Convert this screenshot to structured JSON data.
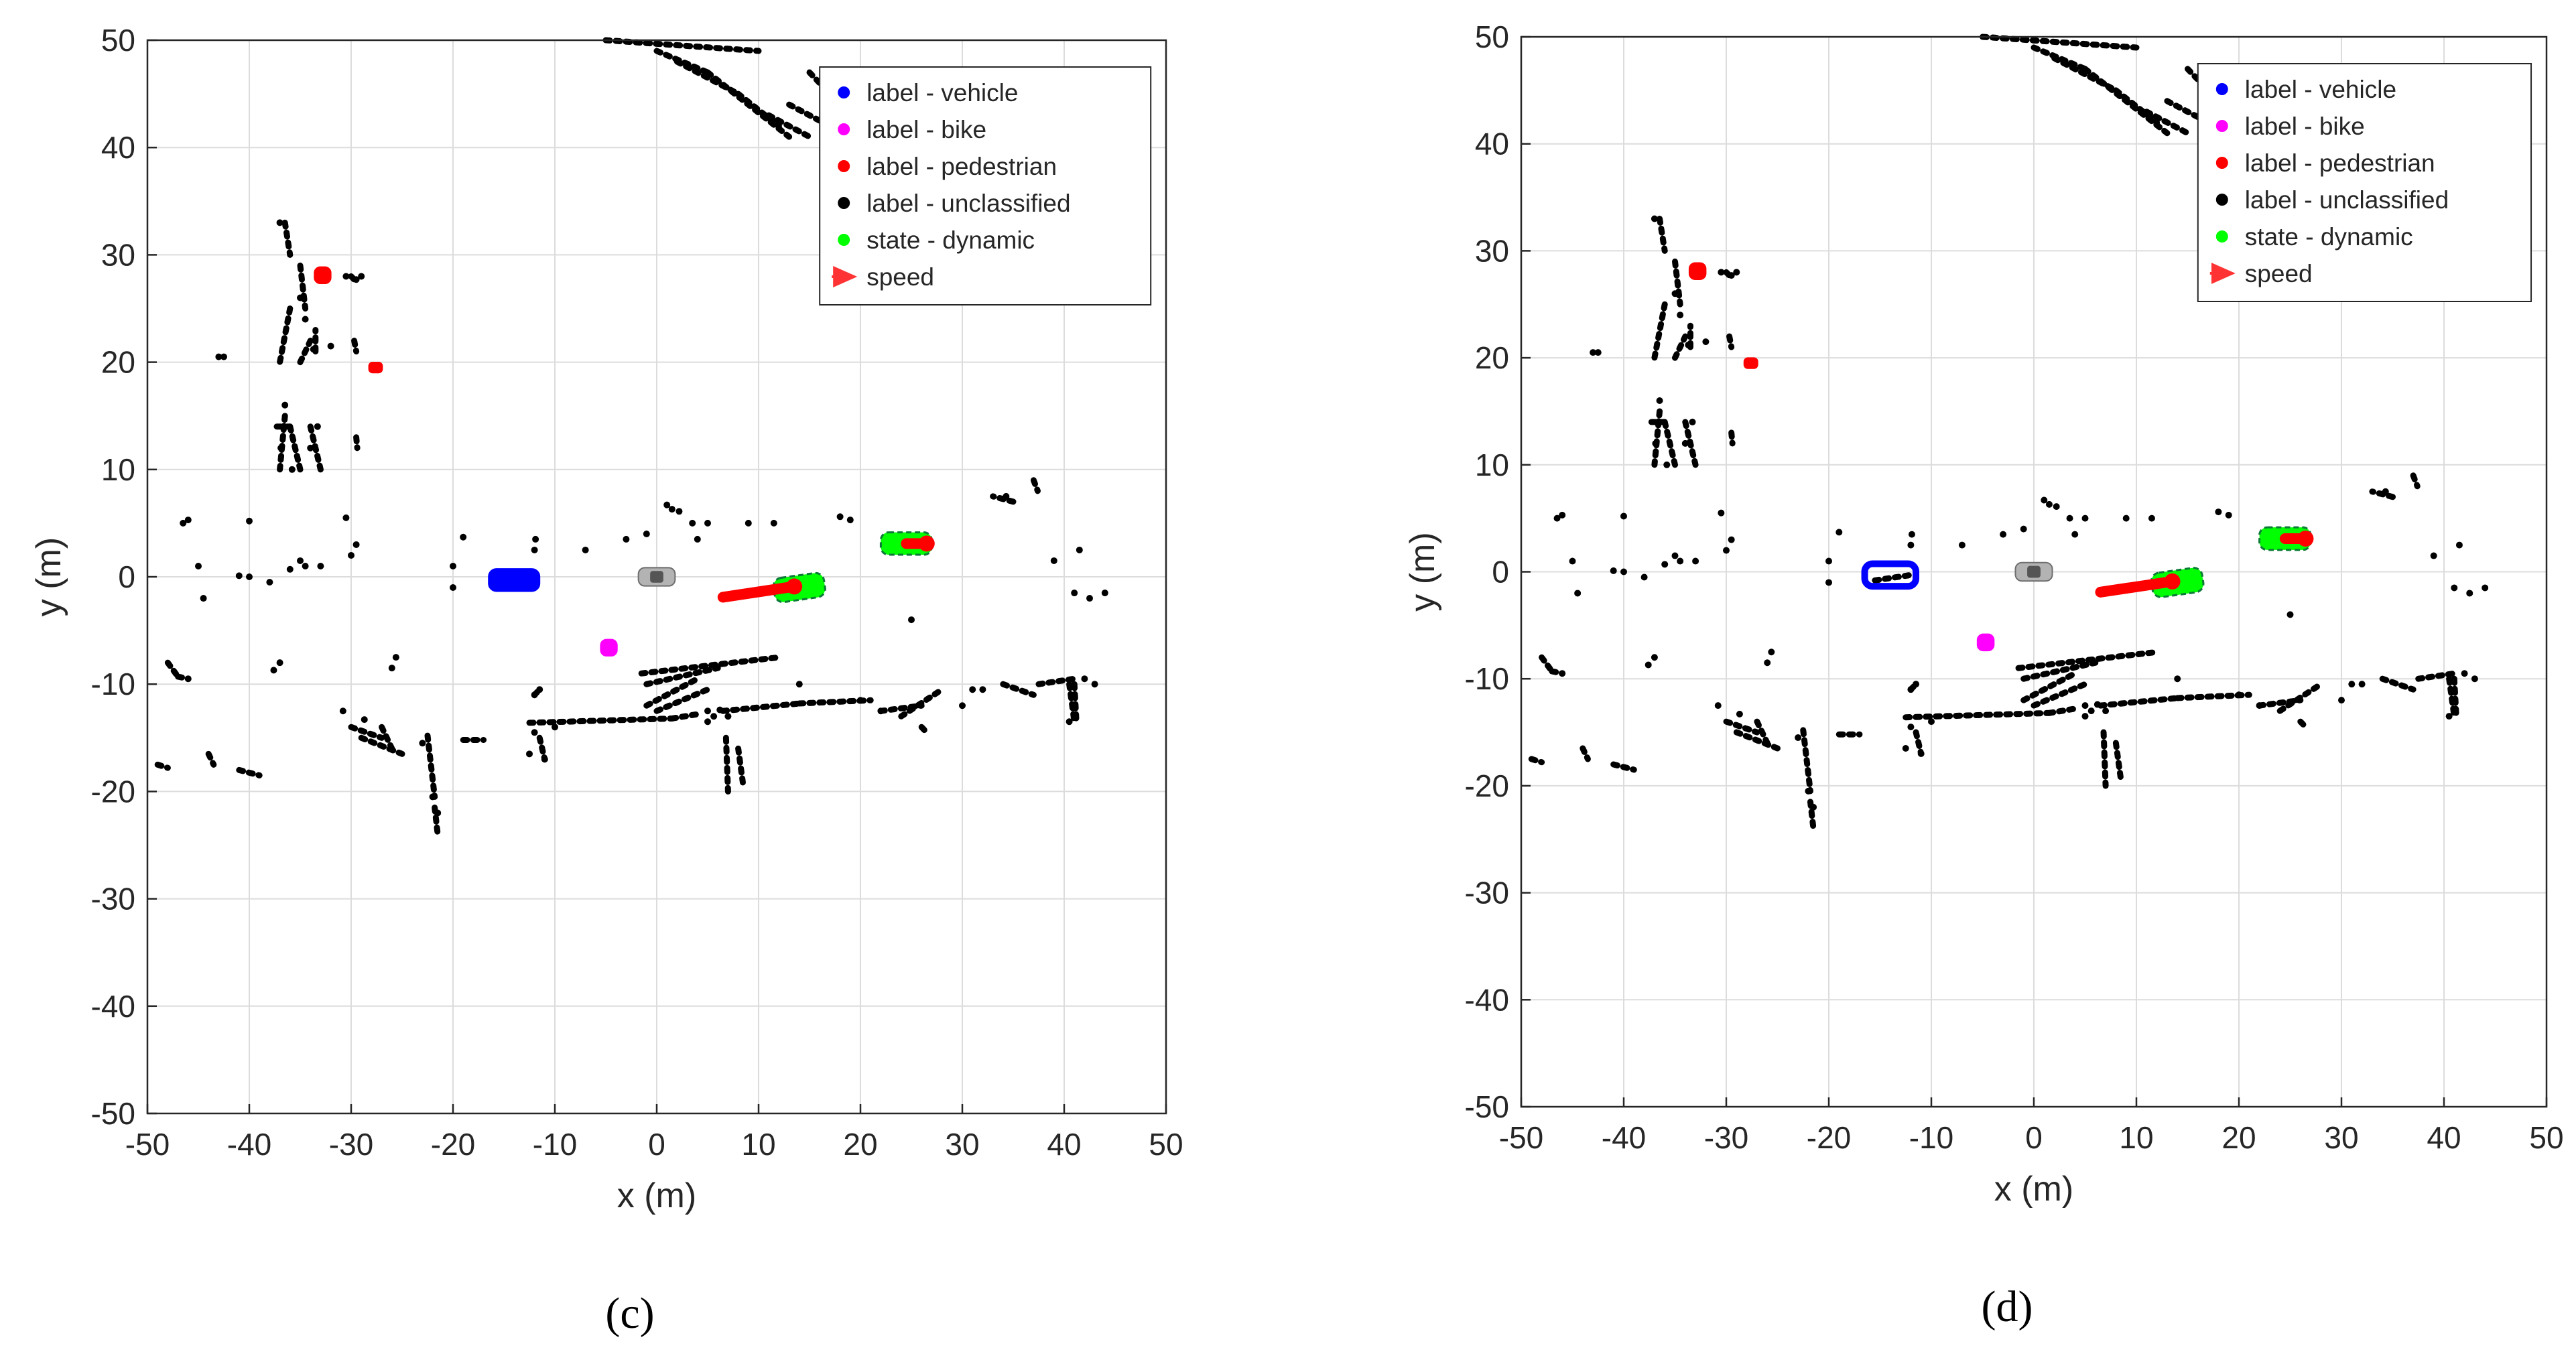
{
  "chart_data": [
    {
      "type": "scatter",
      "panel_label": "(c)",
      "xlabel": "x (m)",
      "ylabel": "y (m)",
      "xlim": [
        -50,
        50
      ],
      "ylim": [
        -50,
        50
      ],
      "xticks": [
        "-50",
        "-40",
        "-30",
        "-20",
        "-10",
        "0",
        "10",
        "20",
        "30",
        "40",
        "50"
      ],
      "yticks": [
        "-50",
        "-40",
        "-30",
        "-20",
        "-10",
        "0",
        "10",
        "20",
        "30",
        "40",
        "50"
      ],
      "grid": true,
      "legend_position": "top-right",
      "legend": [
        {
          "label": "label - vehicle",
          "color": "#0000ff",
          "marker": "dot"
        },
        {
          "label": "label - bike",
          "color": "#ff00ff",
          "marker": "dot"
        },
        {
          "label": "label - pedestrian",
          "color": "#ff0000",
          "marker": "dot"
        },
        {
          "label": "label - unclassified",
          "color": "#000000",
          "marker": "dot"
        },
        {
          "label": "state - dynamic",
          "color": "#00ff00",
          "marker": "dot"
        },
        {
          "label": "speed",
          "color": "#ff3333",
          "marker": "arrow"
        }
      ],
      "objects": [
        {
          "class": "vehicle",
          "center": [
            -14,
            -0.3
          ],
          "size": [
            5,
            2.2
          ],
          "color": "#0000ff"
        },
        {
          "class": "bike",
          "center": [
            -4.7,
            -6.6
          ],
          "size": [
            1.6,
            1.6
          ],
          "color": "#ff00ff"
        },
        {
          "class": "pedestrian",
          "center": [
            -32.8,
            28.1
          ],
          "size": [
            1.6,
            1.6
          ],
          "color": "#ff0000"
        },
        {
          "class": "pedestrian",
          "center": [
            -27.6,
            19.5
          ],
          "size": [
            1.3,
            1.0
          ],
          "color": "#ff0000"
        },
        {
          "class": "dynamic",
          "center": [
            14,
            -1
          ],
          "size": [
            5,
            2.4
          ],
          "angle": 8,
          "color": "#00ff00"
        },
        {
          "class": "dynamic",
          "center": [
            24.5,
            3.1
          ],
          "size": [
            5,
            2.2
          ],
          "color": "#00ff00"
        },
        {
          "class": "ego",
          "center": [
            0,
            0
          ],
          "size": [
            3.6,
            1.8
          ],
          "color": "#aaaaaa"
        }
      ],
      "speed_tracks": [
        {
          "from": [
            6.5,
            -1.9
          ],
          "to": [
            13.5,
            -0.9
          ],
          "color": "#ff0000"
        },
        {
          "from": [
            24.5,
            3.1
          ],
          "to": [
            26.5,
            3.1
          ],
          "color": "#ff0000"
        }
      ]
    },
    {
      "type": "scatter",
      "panel_label": "(d)",
      "xlabel": "x (m)",
      "ylabel": "y (m)",
      "xlim": [
        -50,
        50
      ],
      "ylim": [
        -50,
        50
      ],
      "xticks": [
        "-50",
        "-40",
        "-30",
        "-20",
        "-10",
        "0",
        "10",
        "20",
        "30",
        "40",
        "50"
      ],
      "yticks": [
        "-50",
        "-40",
        "-30",
        "-20",
        "-10",
        "0",
        "10",
        "20",
        "30",
        "40",
        "50"
      ],
      "grid": true,
      "legend_position": "top-right",
      "legend": [
        {
          "label": "label - vehicle",
          "color": "#0000ff",
          "marker": "dot"
        },
        {
          "label": "label - bike",
          "color": "#ff00ff",
          "marker": "dot"
        },
        {
          "label": "label - pedestrian",
          "color": "#ff0000",
          "marker": "dot"
        },
        {
          "label": "label - unclassified",
          "color": "#000000",
          "marker": "dot"
        },
        {
          "label": "state - dynamic",
          "color": "#00ff00",
          "marker": "dot"
        },
        {
          "label": "speed",
          "color": "#ff3333",
          "marker": "arrow"
        }
      ],
      "objects": [
        {
          "class": "vehicle",
          "center": [
            -14,
            -0.3
          ],
          "size": [
            5,
            2.2
          ],
          "color": "#0000ff",
          "hollow": true
        },
        {
          "class": "bike",
          "center": [
            -4.7,
            -6.6
          ],
          "size": [
            1.6,
            1.6
          ],
          "color": "#ff00ff"
        },
        {
          "class": "pedestrian",
          "center": [
            -32.8,
            28.1
          ],
          "size": [
            1.6,
            1.6
          ],
          "color": "#ff0000"
        },
        {
          "class": "pedestrian",
          "center": [
            -27.6,
            19.5
          ],
          "size": [
            1.3,
            1.0
          ],
          "color": "#ff0000"
        },
        {
          "class": "dynamic",
          "center": [
            14,
            -1
          ],
          "size": [
            5,
            2.4
          ],
          "angle": 8,
          "color": "#00ff00"
        },
        {
          "class": "dynamic",
          "center": [
            24.5,
            3.1
          ],
          "size": [
            5,
            2.2
          ],
          "color": "#00ff00"
        },
        {
          "class": "ego",
          "center": [
            0,
            0
          ],
          "size": [
            3.6,
            1.8
          ],
          "color": "#aaaaaa"
        }
      ],
      "speed_tracks": [
        {
          "from": [
            6.5,
            -1.9
          ],
          "to": [
            13.5,
            -0.9
          ],
          "color": "#ff0000"
        },
        {
          "from": [
            24.5,
            3.1
          ],
          "to": [
            26.5,
            3.1
          ],
          "color": "#ff0000"
        }
      ]
    }
  ],
  "point_cloud": {
    "color": "#000000",
    "segments": [
      [
        -5,
        50,
        10,
        49
      ],
      [
        0,
        49,
        5,
        47
      ],
      [
        2,
        48,
        8,
        45
      ],
      [
        5,
        47,
        13,
        41
      ],
      [
        8,
        45,
        12,
        42
      ],
      [
        11,
        43,
        15,
        41
      ],
      [
        13,
        44,
        17,
        42
      ],
      [
        15,
        47,
        18,
        44
      ],
      [
        -36.5,
        33,
        -36,
        30
      ],
      [
        -35,
        29,
        -34.5,
        25
      ],
      [
        -36,
        25,
        -37,
        20
      ],
      [
        -36.5,
        15,
        -37,
        10
      ],
      [
        -37.3,
        14,
        -36,
        14
      ],
      [
        -36,
        14,
        -35,
        10
      ],
      [
        -34,
        14,
        -33,
        10
      ],
      [
        -35,
        20,
        -34,
        22
      ],
      [
        -33.5,
        21,
        -33.5,
        23
      ],
      [
        -30,
        28,
        -29.5,
        27.5
      ],
      [
        -29.7,
        22,
        -29.5,
        21
      ],
      [
        -29.5,
        13,
        -29.4,
        12
      ],
      [
        -22.5,
        -14.8,
        -21.8,
        -20.5
      ],
      [
        -21.8,
        -21.5,
        -21.5,
        -24
      ],
      [
        -12.5,
        -13.6,
        1.5,
        -13.2
      ],
      [
        1.5,
        -13.2,
        4,
        -12.8
      ],
      [
        -12,
        -11,
        -11.5,
        -10.5
      ],
      [
        -11.5,
        -15,
        -11,
        -17
      ],
      [
        -1.5,
        -9,
        12,
        -7.5
      ],
      [
        -1,
        -10,
        6,
        -8.5
      ],
      [
        -1,
        -12,
        4,
        -9.5
      ],
      [
        0,
        -12.5,
        5,
        -10.5
      ],
      [
        6.5,
        -12.5,
        14,
        -11.8
      ],
      [
        14,
        -11.8,
        21,
        -11.5
      ],
      [
        6.8,
        -15,
        7,
        -20
      ],
      [
        8,
        -16,
        8.5,
        -19.5
      ],
      [
        22,
        -12.5,
        26,
        -12
      ],
      [
        24,
        -13,
        28,
        -10.5
      ],
      [
        26,
        -14,
        26.5,
        -14.5
      ],
      [
        34,
        -10,
        37,
        -11
      ],
      [
        37.5,
        -10,
        41,
        -9.5
      ],
      [
        40.5,
        -10,
        41,
        -13.5
      ],
      [
        41,
        -10,
        41.2,
        -13.5
      ],
      [
        -48,
        -8,
        -47,
        -9.3
      ],
      [
        -47,
        -9.3,
        -46,
        -9.5
      ],
      [
        -49,
        -17.5,
        -48,
        -17.8
      ],
      [
        -44,
        -16.5,
        -43.5,
        -17.5
      ],
      [
        -41,
        -18,
        -39,
        -18.5
      ],
      [
        -30,
        -14,
        -27,
        -15
      ],
      [
        -27,
        -14,
        -26,
        -16
      ],
      [
        -29,
        -15,
        -25,
        -16.5
      ],
      [
        -19,
        -15.2,
        -17,
        -15.2
      ],
      [
        -15.5,
        -0.8,
        -12,
        -0.3
      ],
      [
        37,
        9,
        37.4,
        8
      ],
      [
        35,
        7,
        33,
        7.5
      ]
    ],
    "dots": [
      [
        -46.5,
        5
      ],
      [
        -46,
        5.3
      ],
      [
        -44.5,
        -2
      ],
      [
        -45,
        1
      ],
      [
        -40,
        5.2
      ],
      [
        -40,
        0
      ],
      [
        -36,
        0.7
      ],
      [
        -35,
        1.5
      ],
      [
        -38,
        -0.5
      ],
      [
        -41,
        0.1
      ],
      [
        -34.5,
        1
      ],
      [
        -33,
        1
      ],
      [
        -30.5,
        5.5
      ],
      [
        -29.5,
        3
      ],
      [
        -30,
        2
      ],
      [
        -19,
        3.7
      ],
      [
        -20,
        1
      ],
      [
        -20,
        -1
      ],
      [
        -11.9,
        3.5
      ],
      [
        -12,
        2.5
      ],
      [
        -7,
        2.5
      ],
      [
        -3,
        3.5
      ],
      [
        -1,
        4
      ],
      [
        1,
        6.7
      ],
      [
        1.5,
        6.3
      ],
      [
        2.2,
        6.1
      ],
      [
        3.5,
        5
      ],
      [
        4,
        3.5
      ],
      [
        5,
        5
      ],
      [
        9,
        5
      ],
      [
        11.5,
        5
      ],
      [
        18,
        5.6
      ],
      [
        19,
        5.3
      ],
      [
        25,
        -4
      ],
      [
        34.3,
        7.5
      ],
      [
        39,
        1.5
      ],
      [
        41.5,
        2.5
      ],
      [
        41,
        -1.5
      ],
      [
        44,
        -1.5
      ],
      [
        42.5,
        -2
      ],
      [
        -46,
        -9.5
      ],
      [
        -37.6,
        -8.7
      ],
      [
        -25.6,
        -7.5
      ],
      [
        -26,
        -8.5
      ],
      [
        -37,
        -8
      ],
      [
        -30.8,
        -12.5
      ],
      [
        -28.7,
        -13.3
      ],
      [
        -23,
        -15.5
      ],
      [
        -11.5,
        -10.5
      ],
      [
        -12,
        -11
      ],
      [
        -10,
        -14
      ],
      [
        -11,
        -17
      ],
      [
        -12.5,
        -16.5
      ],
      [
        -12,
        -14.5
      ],
      [
        5,
        -12.5
      ],
      [
        5.6,
        -13
      ],
      [
        6.2,
        -12.4
      ],
      [
        7,
        -13
      ],
      [
        22,
        -12.5
      ],
      [
        30,
        -12
      ],
      [
        31,
        -10.5
      ],
      [
        32,
        -10.5
      ],
      [
        42,
        -9.5
      ],
      [
        43,
        -10
      ],
      [
        40.5,
        -13.5
      ],
      [
        -22,
        -20.5
      ],
      [
        -21.5,
        -22
      ],
      [
        5,
        -13.5
      ],
      [
        14,
        -10
      ],
      [
        20,
        -11.5
      ],
      [
        -32,
        21.5
      ],
      [
        -33.7,
        21.2
      ],
      [
        -36.5,
        16
      ],
      [
        -36.9,
        12
      ],
      [
        -35.8,
        10
      ],
      [
        -34,
        12
      ],
      [
        -33.3,
        14
      ],
      [
        -43,
        20.5
      ],
      [
        -42.5,
        20.5
      ],
      [
        -37,
        33
      ],
      [
        -30.5,
        28
      ],
      [
        -29.5,
        27.7
      ],
      [
        -29,
        28
      ],
      [
        -34.5,
        24
      ],
      [
        -35,
        26
      ]
    ]
  }
}
